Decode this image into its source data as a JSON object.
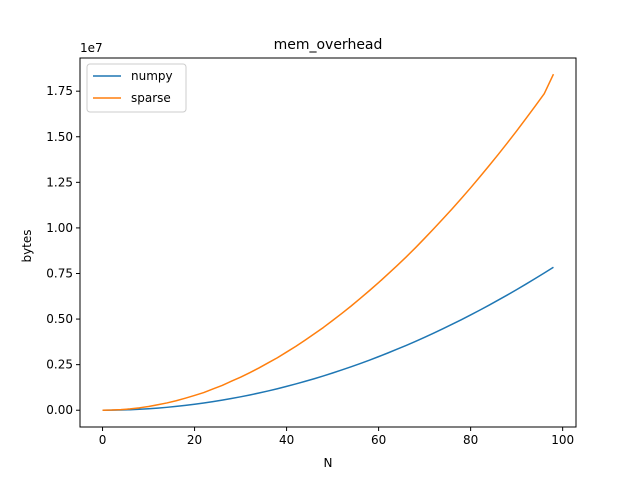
{
  "chart_data": {
    "type": "line",
    "title": "mem_overhead",
    "xlabel": "N",
    "ylabel": "bytes",
    "y_offset_label": "1e7",
    "xlim": [
      -4.9,
      102.9
    ],
    "ylim": [
      -920000,
      19320000
    ],
    "x_ticks": [
      0,
      20,
      40,
      60,
      80,
      100
    ],
    "x_tick_labels": [
      "0",
      "20",
      "40",
      "60",
      "80",
      "100"
    ],
    "y_ticks": [
      0,
      2500000,
      5000000,
      7500000,
      10000000,
      12500000,
      15000000,
      17500000
    ],
    "y_tick_labels": [
      "0.00",
      "0.25",
      "0.50",
      "0.75",
      "1.00",
      "1.25",
      "1.50",
      "1.75"
    ],
    "grid": false,
    "legend_position": "upper left",
    "x": [
      0,
      2,
      4,
      6,
      8,
      10,
      12,
      14,
      16,
      18,
      20,
      22,
      24,
      26,
      28,
      30,
      32,
      34,
      36,
      38,
      40,
      42,
      44,
      46,
      48,
      50,
      52,
      54,
      56,
      58,
      60,
      62,
      64,
      66,
      68,
      70,
      72,
      74,
      76,
      78,
      80,
      82,
      84,
      86,
      88,
      90,
      92,
      94,
      96,
      98
    ],
    "series": [
      {
        "name": "numpy",
        "color": "#1f77b4",
        "values": [
          0,
          3300,
          13000,
          29500,
          52300,
          81700,
          118000,
          160000,
          209000,
          265000,
          327000,
          396000,
          471000,
          553000,
          641000,
          736000,
          837000,
          945000,
          1059000,
          1180000,
          1307000,
          1441000,
          1582000,
          1728000,
          1882000,
          2042000,
          2208000,
          2381000,
          2561000,
          2747000,
          2940000,
          3139000,
          3345000,
          3557000,
          3776000,
          4001000,
          4233000,
          4472000,
          4717000,
          4968000,
          5227000,
          5491000,
          5763000,
          6041000,
          6325000,
          6616000,
          6914000,
          7218000,
          7528000,
          7845000
        ]
      },
      {
        "name": "sparse",
        "color": "#ff7f0e",
        "values": [
          0,
          9000,
          33000,
          73000,
          132000,
          205000,
          300000,
          400000,
          520000,
          660000,
          810000,
          970000,
          1170000,
          1360000,
          1590000,
          1810000,
          2060000,
          2320000,
          2600000,
          2880000,
          3190000,
          3500000,
          3840000,
          4190000,
          4540000,
          4920000,
          5310000,
          5710000,
          6130000,
          6560000,
          7000000,
          7460000,
          7930000,
          8410000,
          8910000,
          9430000,
          9960000,
          10500000,
          11050000,
          11620000,
          12200000,
          12800000,
          13410000,
          14030000,
          14670000,
          15320000,
          15990000,
          16670000,
          17360000,
          18430000
        ]
      }
    ]
  }
}
